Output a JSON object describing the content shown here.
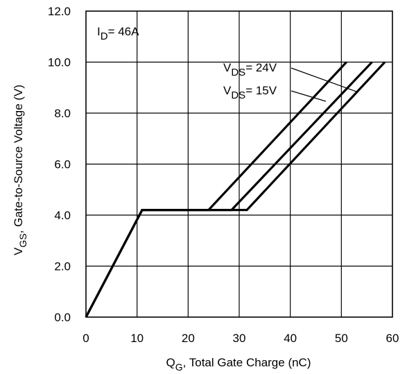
{
  "chart_data": {
    "type": "line",
    "title": "",
    "xlabel": {
      "main": "Q",
      "sub": "G",
      "rest": ",  Total Gate Charge (nC)"
    },
    "ylabel": {
      "main": "V",
      "sub": "GS",
      "rest": ", Gate-to-Source Voltage (V)"
    },
    "xlim": [
      0,
      60
    ],
    "ylim": [
      0,
      12
    ],
    "xticks": [
      0,
      10,
      20,
      30,
      40,
      50,
      60
    ],
    "xtick_labels": [
      "0",
      "10",
      "20",
      "30",
      "40",
      "50",
      "60"
    ],
    "yticks": [
      0,
      2,
      4,
      6,
      8,
      10,
      12
    ],
    "ytick_labels": [
      "0.0",
      "2.0",
      "4.0",
      "6.0",
      "8.0",
      "10.0",
      "12.0"
    ],
    "grid": true,
    "legend": "none",
    "series": [
      {
        "points": [
          [
            0,
            0
          ],
          [
            11,
            4.2
          ],
          [
            24,
            4.2
          ],
          [
            51,
            10
          ]
        ]
      },
      {
        "points": [
          [
            0,
            0
          ],
          [
            11,
            4.2
          ],
          [
            28.5,
            4.2
          ],
          [
            56,
            10
          ]
        ]
      },
      {
        "points": [
          [
            0,
            0
          ],
          [
            11,
            4.2
          ],
          [
            31.5,
            4.2
          ],
          [
            58.5,
            10
          ]
        ]
      }
    ],
    "annotations": [
      {
        "id": "id",
        "main": "I",
        "sub": "D",
        "rest": "= 46A"
      },
      {
        "id": "vds24",
        "main": "V",
        "sub": "DS",
        "rest": "= 24V"
      },
      {
        "id": "vds15",
        "main": "V",
        "sub": "DS",
        "rest": "= 15V"
      }
    ]
  }
}
